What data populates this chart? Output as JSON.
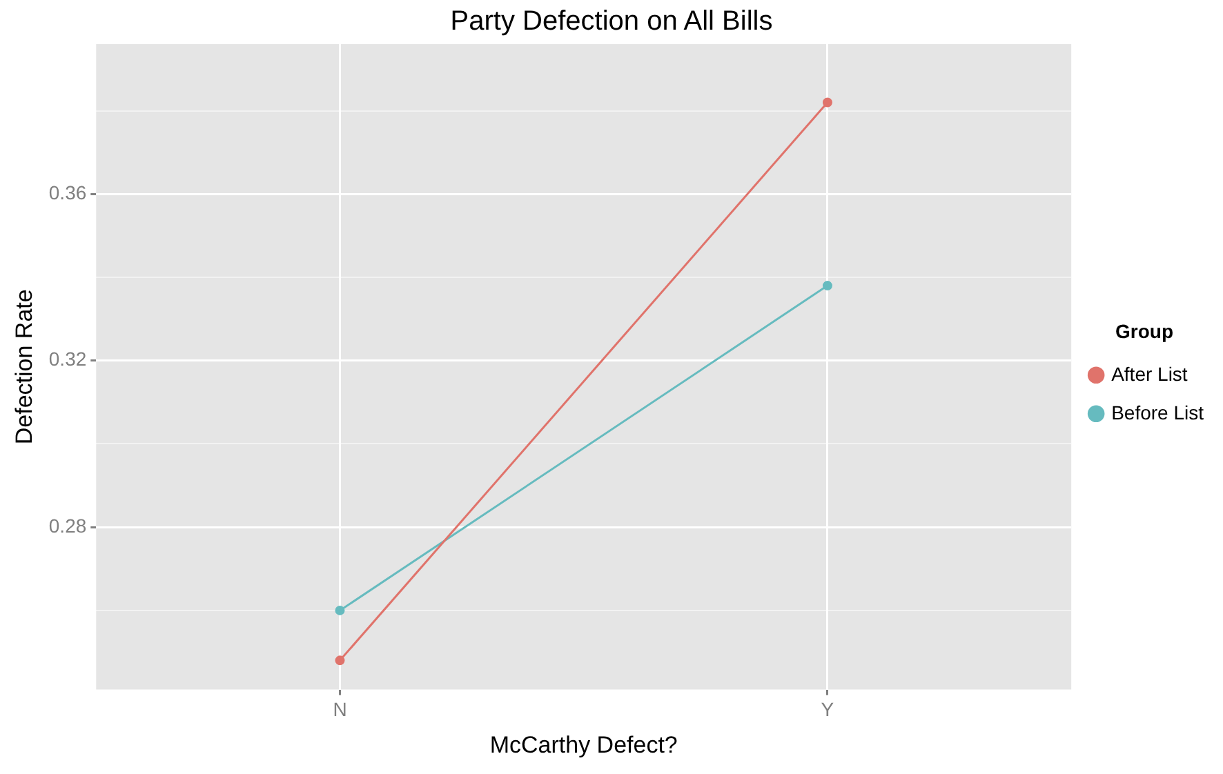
{
  "chart_data": {
    "type": "line",
    "title": "Party Defection on All Bills",
    "xlabel": "McCarthy Defect?",
    "ylabel": "Defection Rate",
    "legend_title": "Group",
    "categories": [
      "N",
      "Y"
    ],
    "series": [
      {
        "name": "After List",
        "color": "#e0736b",
        "values": [
          0.248,
          0.382
        ]
      },
      {
        "name": "Before List",
        "color": "#66bbbf",
        "values": [
          0.26,
          0.338
        ]
      }
    ],
    "ylim": [
      0.241,
      0.396
    ],
    "yticks": [
      {
        "value": 0.26,
        "label": null
      },
      {
        "value": 0.28,
        "label": "0.28"
      },
      {
        "value": 0.3,
        "label": null
      },
      {
        "value": 0.32,
        "label": "0.32"
      },
      {
        "value": 0.34,
        "label": null
      },
      {
        "value": 0.36,
        "label": "0.36"
      },
      {
        "value": 0.38,
        "label": null
      }
    ],
    "grid": true,
    "legend": "right",
    "marker": "circle",
    "line_style": "solid"
  }
}
